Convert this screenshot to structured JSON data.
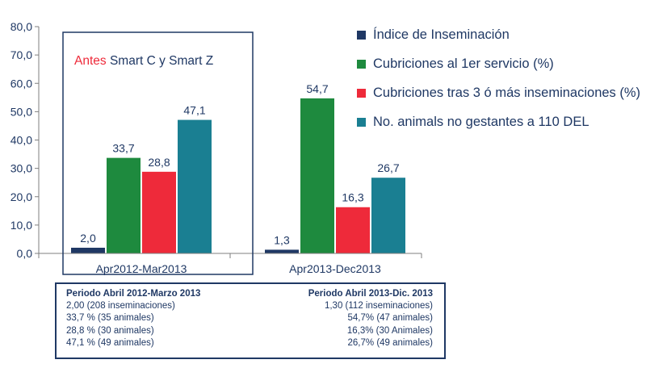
{
  "chart_data": {
    "type": "bar",
    "categories": [
      "Apr2012-Mar2013",
      "Apr2013-Dec2013"
    ],
    "series": [
      {
        "name": "Índice de Inseminación",
        "values": [
          2.0,
          1.3
        ],
        "labels": [
          "2,0",
          "1,3"
        ],
        "color": "#1f3864"
      },
      {
        "name": "Cubriciones al 1er servicio (%)",
        "values": [
          33.7,
          54.7
        ],
        "labels": [
          "33,7",
          "54,7"
        ],
        "color": "#1e8a3e"
      },
      {
        "name": "Cubriciones tras 3 ó más inseminaciones (%)",
        "values": [
          28.8,
          16.3
        ],
        "labels": [
          "28,8",
          "16,3"
        ],
        "color": "#ee2a3a"
      },
      {
        "name": "No. animals no gestantes a 110 DEL",
        "values": [
          47.1,
          26.7
        ],
        "labels": [
          "47,1",
          "26,7"
        ],
        "color": "#1a7f92"
      }
    ],
    "ylim": [
      0,
      80
    ],
    "yticks": [
      "0,0",
      "10,0",
      "20,0",
      "30,0",
      "40,0",
      "50,0",
      "60,0",
      "70,0",
      "80,0"
    ],
    "legend_position": "top-right",
    "grid": false,
    "annotation": {
      "highlight": "Antes",
      "rest": " Smart C y Smart Z",
      "highlight_color": "#ee2a3a"
    }
  },
  "summary": {
    "left": {
      "header": "Periodo Abril 2012-Marzo 2013",
      "lines": [
        "2,00 (208 inseminaciones)",
        "33,7 % (35 animales)",
        "28,8 % (30 animales)",
        "47,1 % (49 animales)"
      ]
    },
    "right": {
      "header": "Periodo Abril 2013-Dic. 2013",
      "lines": [
        "1,30 (112 inseminaciones)",
        "54,7% (47 animales)",
        "16,3% (30 Animales)",
        "26,7% (49 animales)"
      ]
    }
  }
}
